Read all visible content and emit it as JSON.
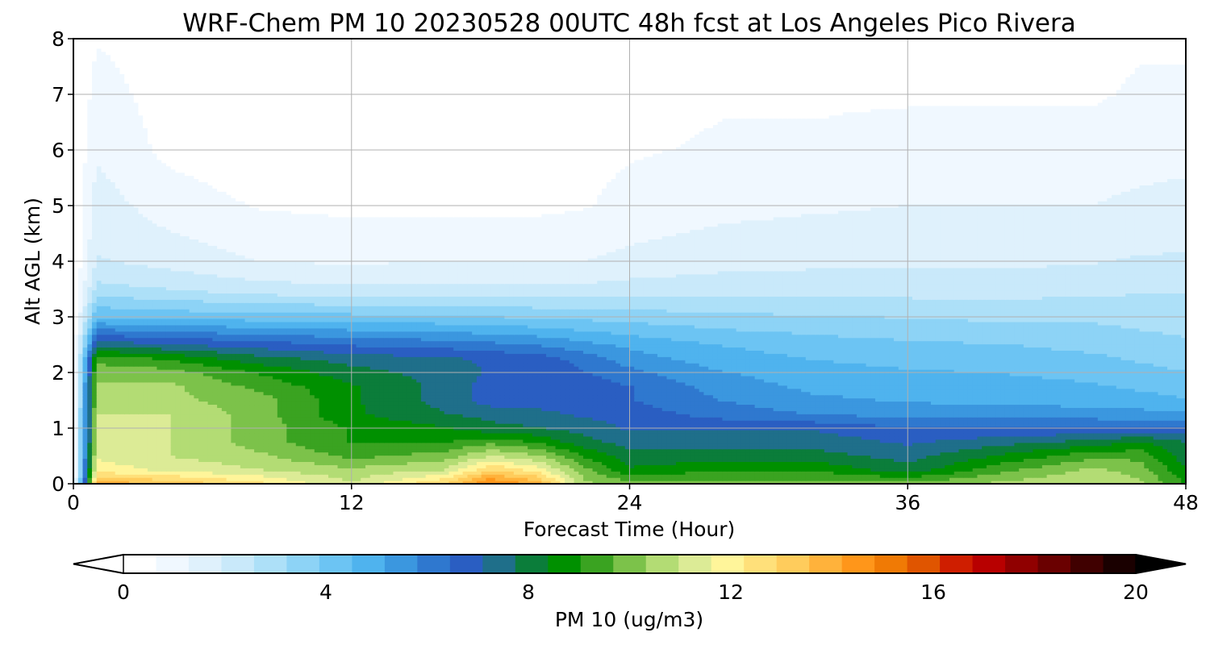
{
  "chart_data": {
    "type": "heatmap",
    "title": "WRF-Chem PM 10  20230528 00UTC 48h fcst at Los Angeles Pico Rivera",
    "xlabel": "Forecast Time (Hour)",
    "ylabel": "Alt AGL (km)",
    "xlim": [
      0,
      48
    ],
    "ylim": [
      0,
      8
    ],
    "xticks": [
      "0",
      "12",
      "24",
      "36",
      "48"
    ],
    "yticks": [
      "0",
      "1",
      "2",
      "3",
      "4",
      "5",
      "6",
      "7",
      "8"
    ],
    "grid": true,
    "colorbar": {
      "label": "PM 10  (ug/m3)",
      "range": [
        0,
        20
      ],
      "ticks": [
        "0",
        "4",
        "8",
        "12",
        "16",
        "20"
      ],
      "extend": "both",
      "colors": [
        "#ffffff",
        "#f0f8ff",
        "#dff1fc",
        "#c9e9fa",
        "#ade0f8",
        "#8dd3f6",
        "#6cc4f3",
        "#4fb3ee",
        "#3b97df",
        "#2f78cf",
        "#2a5ec2",
        "#1f6f8a",
        "#0b7d3a",
        "#009000",
        "#3aa321",
        "#7cc24a",
        "#b3dc74",
        "#dceb96",
        "#fff59a",
        "#ffe07a",
        "#ffcc5c",
        "#ffb23b",
        "#ff961a",
        "#f07a05",
        "#e05500",
        "#cf1e00",
        "#b80000",
        "#900000",
        "#6a0000",
        "#400000",
        "#1a0000"
      ]
    },
    "x": [
      0,
      1,
      4,
      8,
      12,
      16,
      18,
      20,
      22,
      24,
      28,
      32,
      36,
      40,
      44,
      46,
      48
    ],
    "y": [
      0,
      0.25,
      0.5,
      0.75,
      1,
      1.25,
      1.5,
      1.75,
      2,
      2.25,
      2.5,
      3,
      3.5,
      4,
      5,
      6,
      7,
      8
    ],
    "z": [
      [
        0,
        14,
        13.5,
        12.5,
        11,
        13,
        15,
        14,
        10.5,
        10,
        10,
        10,
        10,
        10.5,
        11,
        10.5,
        9
      ],
      [
        0,
        12,
        11.5,
        11,
        10.5,
        11,
        13,
        12,
        10,
        8.5,
        9,
        9,
        8,
        9.5,
        10.5,
        10,
        8.5
      ],
      [
        0,
        11.5,
        11,
        10.5,
        9.5,
        10,
        11,
        10.5,
        9,
        8,
        8,
        8,
        7.5,
        8.5,
        9.5,
        9.5,
        8
      ],
      [
        0,
        11,
        11,
        10,
        9,
        9,
        9.5,
        9,
        8,
        7.5,
        7.5,
        7.5,
        7,
        7.5,
        8,
        8.5,
        7.8
      ],
      [
        0,
        11,
        11,
        10,
        9,
        8.5,
        8,
        7.8,
        7.5,
        7,
        7,
        7,
        6.5,
        6.5,
        6.5,
        6.5,
        6.5
      ],
      [
        0,
        11,
        11,
        10,
        8.5,
        7.8,
        7.5,
        7.3,
        7,
        6.8,
        6.2,
        5.8,
        5.6,
        5.5,
        5.5,
        5.4,
        5.3
      ],
      [
        0,
        10.5,
        10.5,
        10,
        8.5,
        7.5,
        6.8,
        6.8,
        6.8,
        6.5,
        5.8,
        5.3,
        5.1,
        5,
        4.9,
        4.8,
        4.6
      ],
      [
        0,
        10.5,
        10.5,
        9.5,
        8.5,
        7.5,
        6.8,
        6.8,
        6.8,
        6.5,
        5.5,
        5,
        4.9,
        4.8,
        4.6,
        4.4,
        4.2
      ],
      [
        0,
        10,
        10,
        9,
        8,
        7.5,
        7,
        6.9,
        6.5,
        6,
        5.2,
        4.8,
        4.6,
        4.5,
        4.3,
        4.1,
        3.9
      ],
      [
        0,
        9.5,
        9,
        8,
        7.5,
        7.2,
        7,
        6.8,
        6.2,
        5.5,
        4.8,
        4.5,
        4.3,
        4.2,
        4,
        3.8,
        3.6
      ],
      [
        0,
        7.5,
        7.2,
        6.8,
        6.4,
        6.2,
        6,
        5.8,
        5.4,
        5,
        4.5,
        4.2,
        4,
        3.9,
        3.7,
        3.5,
        3.3
      ],
      [
        0,
        4.5,
        4.3,
        4.2,
        4.1,
        4,
        3.9,
        3.8,
        3.7,
        3.6,
        3.4,
        3.3,
        3.2,
        3.1,
        3.1,
        3,
        3
      ],
      [
        0,
        2.8,
        2.6,
        2.2,
        2.1,
        2.1,
        2.1,
        2.1,
        2.1,
        2.2,
        2.3,
        2.3,
        2.3,
        2.3,
        2.4,
        2.5,
        2.5
      ],
      [
        0,
        2,
        1.7,
        1.3,
        1.2,
        1.3,
        1.3,
        1.3,
        1.3,
        1.5,
        1.7,
        1.8,
        1.8,
        1.8,
        1.9,
        2,
        2
      ],
      [
        0,
        1.6,
        1,
        0.6,
        0.5,
        0.5,
        0.5,
        0.5,
        0.6,
        0.8,
        1.1,
        1.2,
        1.3,
        1.3,
        1.3,
        1.5,
        1.6
      ],
      [
        0,
        1.2,
        0.5,
        0.2,
        0.2,
        0.3,
        0.4,
        0.5,
        0.5,
        0.6,
        0.7,
        0.7,
        0.8,
        0.8,
        0.8,
        0.9,
        1
      ],
      [
        0,
        0.9,
        0.4,
        0.3,
        0.3,
        0.3,
        0.4,
        0.5,
        0.5,
        0.5,
        0.6,
        0.6,
        0.6,
        0.6,
        0.6,
        0.7,
        0.7
      ],
      [
        0,
        0.6,
        0.4,
        0.3,
        0.3,
        0.3,
        0.4,
        0.4,
        0.5,
        0.5,
        0.5,
        0.5,
        0.5,
        0.5,
        0.5,
        0.6,
        0.6
      ]
    ]
  }
}
